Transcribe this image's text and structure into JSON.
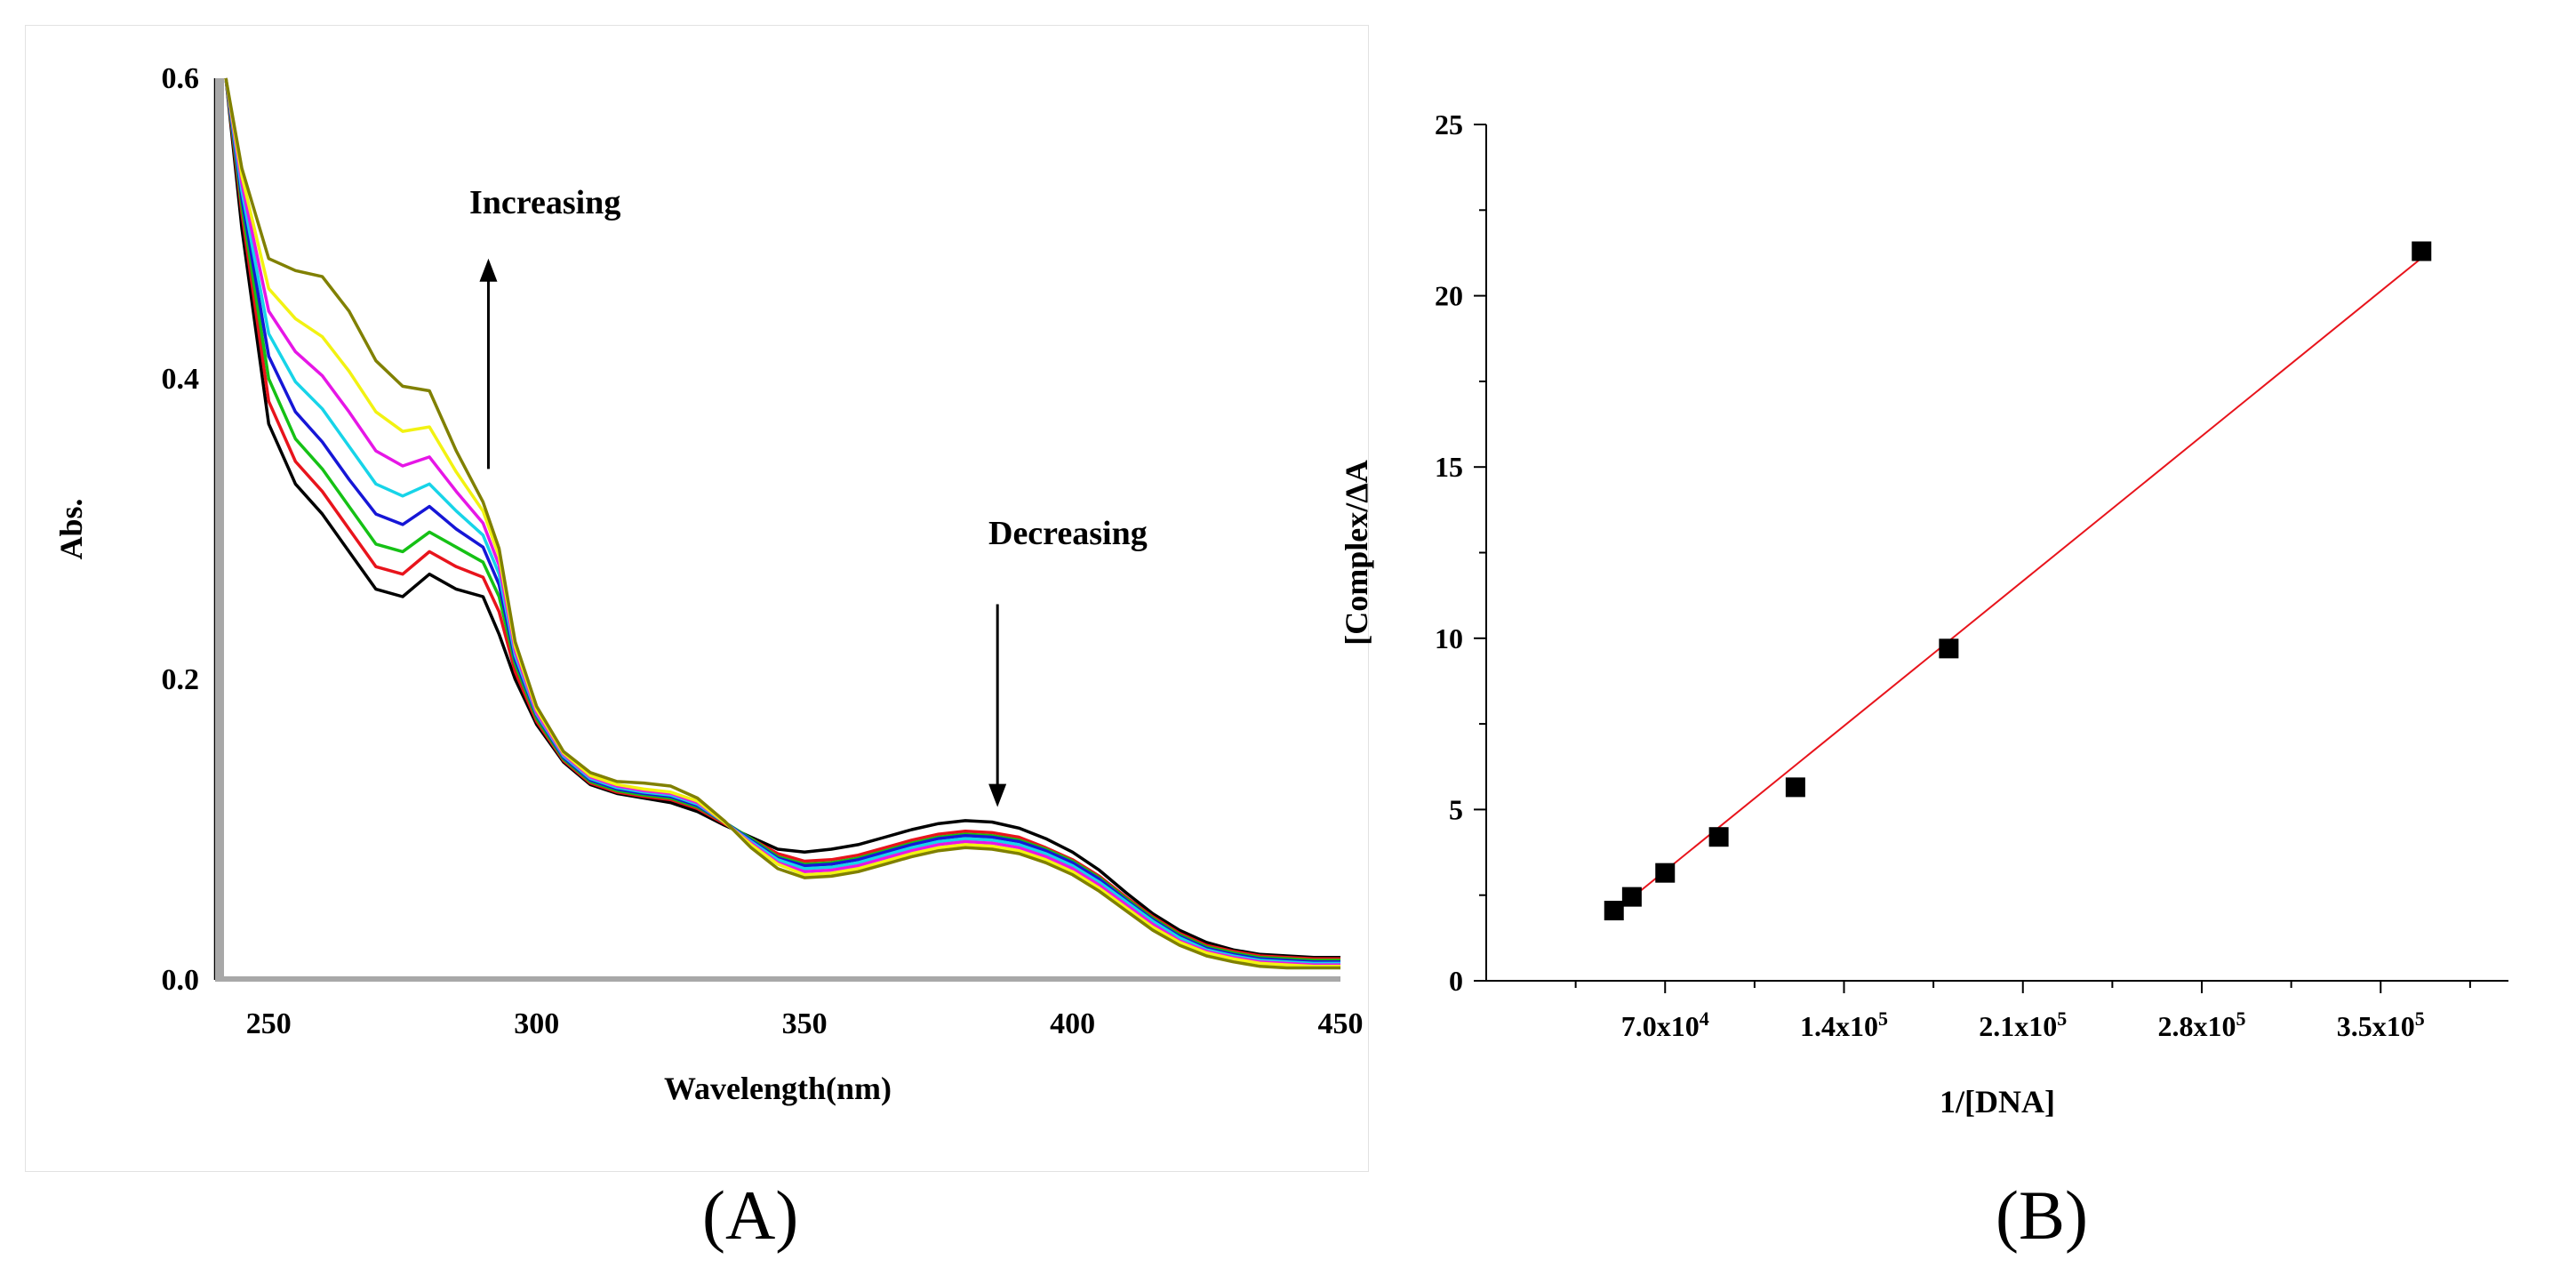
{
  "panels": [
    {
      "label": "(A)",
      "chart_data": {
        "type": "line",
        "title": "",
        "xlabel": "Wavelength(nm)",
        "ylabel": "Abs.",
        "xlim": [
          240,
          450
        ],
        "ylim": [
          0.0,
          0.6
        ],
        "xticks": [
          "250",
          "300",
          "350",
          "400",
          "450"
        ],
        "yticks": [
          "0.0",
          "0.2",
          "0.4",
          "0.6"
        ],
        "grid": false,
        "legend": "none",
        "annotations": [
          {
            "text": "Increasing",
            "arrow": "up",
            "x": 291,
            "y_from": 0.34,
            "y_to": 0.48
          },
          {
            "text": "Decreasing",
            "arrow": "down",
            "x": 386,
            "y_from": 0.25,
            "y_to": 0.115
          }
        ],
        "x": [
          242,
          245,
          250,
          255,
          260,
          265,
          270,
          275,
          280,
          285,
          290,
          293,
          296,
          300,
          305,
          310,
          315,
          320,
          325,
          330,
          335,
          340,
          345,
          350,
          355,
          360,
          365,
          370,
          375,
          380,
          385,
          390,
          395,
          400,
          405,
          410,
          415,
          420,
          425,
          430,
          435,
          440,
          445,
          450
        ],
        "series": [
          {
            "color": "#000000",
            "values": [
              0.6,
              0.5,
              0.37,
              0.33,
              0.31,
              0.285,
              0.26,
              0.255,
              0.27,
              0.26,
              0.255,
              0.23,
              0.2,
              0.17,
              0.145,
              0.13,
              0.124,
              0.121,
              0.118,
              0.112,
              0.103,
              0.095,
              0.087,
              0.085,
              0.087,
              0.09,
              0.095,
              0.1,
              0.104,
              0.106,
              0.105,
              0.101,
              0.094,
              0.085,
              0.073,
              0.058,
              0.044,
              0.033,
              0.025,
              0.02,
              0.017,
              0.016,
              0.015,
              0.015
            ]
          },
          {
            "color": "#e8141c",
            "values": [
              0.6,
              0.51,
              0.385,
              0.345,
              0.325,
              0.3,
              0.275,
              0.27,
              0.285,
              0.275,
              0.268,
              0.245,
              0.205,
              0.172,
              0.146,
              0.131,
              0.125,
              0.122,
              0.12,
              0.114,
              0.104,
              0.094,
              0.084,
              0.079,
              0.08,
              0.083,
              0.088,
              0.093,
              0.097,
              0.099,
              0.098,
              0.095,
              0.088,
              0.08,
              0.069,
              0.055,
              0.042,
              0.031,
              0.023,
              0.019,
              0.016,
              0.015,
              0.014,
              0.014
            ]
          },
          {
            "color": "#15c115",
            "values": [
              0.6,
              0.515,
              0.4,
              0.36,
              0.34,
              0.315,
              0.29,
              0.285,
              0.298,
              0.288,
              0.278,
              0.255,
              0.21,
              0.174,
              0.147,
              0.132,
              0.126,
              0.123,
              0.121,
              0.115,
              0.105,
              0.094,
              0.082,
              0.077,
              0.078,
              0.081,
              0.086,
              0.091,
              0.095,
              0.097,
              0.096,
              0.093,
              0.087,
              0.079,
              0.068,
              0.054,
              0.041,
              0.03,
              0.022,
              0.018,
              0.015,
              0.014,
              0.013,
              0.013
            ]
          },
          {
            "color": "#1616d6",
            "values": [
              0.6,
              0.52,
              0.415,
              0.378,
              0.358,
              0.333,
              0.31,
              0.303,
              0.315,
              0.3,
              0.288,
              0.263,
              0.213,
              0.176,
              0.148,
              0.133,
              0.127,
              0.124,
              0.122,
              0.116,
              0.105,
              0.093,
              0.081,
              0.076,
              0.077,
              0.08,
              0.085,
              0.09,
              0.094,
              0.096,
              0.095,
              0.092,
              0.086,
              0.078,
              0.067,
              0.053,
              0.04,
              0.029,
              0.021,
              0.017,
              0.014,
              0.013,
              0.012,
              0.012
            ]
          },
          {
            "color": "#17d4e8",
            "values": [
              0.6,
              0.525,
              0.43,
              0.398,
              0.38,
              0.355,
              0.33,
              0.322,
              0.33,
              0.312,
              0.296,
              0.27,
              0.216,
              0.177,
              0.149,
              0.134,
              0.128,
              0.125,
              0.123,
              0.117,
              0.105,
              0.092,
              0.08,
              0.074,
              0.075,
              0.078,
              0.083,
              0.088,
              0.092,
              0.094,
              0.093,
              0.09,
              0.084,
              0.076,
              0.065,
              0.052,
              0.039,
              0.028,
              0.02,
              0.016,
              0.013,
              0.012,
              0.011,
              0.011
            ]
          },
          {
            "color": "#e616e6",
            "values": [
              0.6,
              0.53,
              0.445,
              0.418,
              0.402,
              0.378,
              0.352,
              0.342,
              0.348,
              0.325,
              0.304,
              0.276,
              0.219,
              0.178,
              0.15,
              0.135,
              0.129,
              0.126,
              0.124,
              0.118,
              0.105,
              0.091,
              0.078,
              0.072,
              0.073,
              0.076,
              0.081,
              0.086,
              0.09,
              0.092,
              0.091,
              0.088,
              0.082,
              0.074,
              0.063,
              0.05,
              0.037,
              0.026,
              0.019,
              0.015,
              0.012,
              0.011,
              0.01,
              0.01
            ]
          },
          {
            "color": "#f2f212",
            "values": [
              0.6,
              0.535,
              0.46,
              0.44,
              0.428,
              0.405,
              0.378,
              0.365,
              0.368,
              0.338,
              0.312,
              0.282,
              0.222,
              0.18,
              0.151,
              0.136,
              0.13,
              0.127,
              0.125,
              0.119,
              0.105,
              0.09,
              0.077,
              0.07,
              0.071,
              0.074,
              0.079,
              0.084,
              0.088,
              0.09,
              0.089,
              0.086,
              0.08,
              0.072,
              0.061,
              0.048,
              0.035,
              0.025,
              0.018,
              0.014,
              0.011,
              0.01,
              0.009,
              0.009
            ]
          },
          {
            "color": "#808000",
            "values": [
              0.6,
              0.54,
              0.48,
              0.472,
              0.468,
              0.445,
              0.412,
              0.395,
              0.392,
              0.352,
              0.318,
              0.287,
              0.225,
              0.182,
              0.152,
              0.138,
              0.132,
              0.131,
              0.129,
              0.121,
              0.106,
              0.088,
              0.074,
              0.068,
              0.069,
              0.072,
              0.077,
              0.082,
              0.086,
              0.088,
              0.087,
              0.084,
              0.078,
              0.07,
              0.059,
              0.046,
              0.033,
              0.023,
              0.016,
              0.012,
              0.009,
              0.008,
              0.008,
              0.008
            ]
          }
        ]
      }
    },
    {
      "label": "(B)",
      "chart_data": {
        "type": "scatter",
        "title": "",
        "xlabel": "1/[DNA]",
        "ylabel": "[Complex/ΔA",
        "xlim": [
          0,
          400000
        ],
        "ylim": [
          0,
          25
        ],
        "xticks": [
          {
            "value": 70000,
            "mantissa": "7.0x10",
            "exp": "4"
          },
          {
            "value": 140000,
            "mantissa": "1.4x10",
            "exp": "5"
          },
          {
            "value": 210000,
            "mantissa": "2.1x10",
            "exp": "5"
          },
          {
            "value": 280000,
            "mantissa": "2.8x10",
            "exp": "5"
          },
          {
            "value": 350000,
            "mantissa": "3.5x10",
            "exp": "5"
          }
        ],
        "yticks": [
          "0",
          "5",
          "10",
          "15",
          "20",
          "25"
        ],
        "grid": false,
        "legend": "none",
        "points": [
          {
            "x": 50000,
            "y": 2.05
          },
          {
            "x": 57000,
            "y": 2.45
          },
          {
            "x": 70000,
            "y": 3.15
          },
          {
            "x": 91000,
            "y": 4.2
          },
          {
            "x": 121000,
            "y": 5.65
          },
          {
            "x": 181000,
            "y": 9.7
          },
          {
            "x": 366000,
            "y": 21.3
          }
        ],
        "fit_line": {
          "color": "#e8141c",
          "x": [
            50000,
            366000
          ],
          "y": [
            2.0,
            21.1
          ]
        }
      }
    }
  ]
}
